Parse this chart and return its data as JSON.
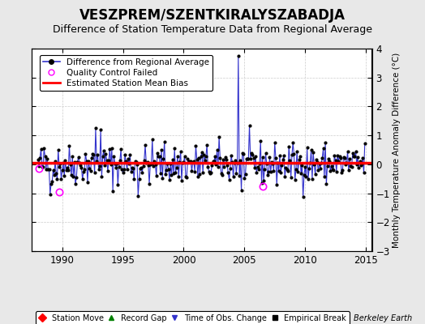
{
  "title": "VESZPREM/SZENTKIRALYSZABADJA",
  "subtitle": "Difference of Station Temperature Data from Regional Average",
  "ylabel_right": "Monthly Temperature Anomaly Difference (°C)",
  "xlim": [
    1987.5,
    2015.5
  ],
  "ylim": [
    -3,
    4
  ],
  "yticks": [
    -3,
    -2,
    -1,
    0,
    1,
    2,
    3,
    4
  ],
  "xticks": [
    1990,
    1995,
    2000,
    2005,
    2010,
    2015
  ],
  "bias_value": 0.05,
  "background_color": "#e8e8e8",
  "plot_bg_color": "#ffffff",
  "line_color": "#3333cc",
  "bias_color": "#ff0000",
  "title_fontsize": 12,
  "subtitle_fontsize": 9,
  "watermark": "Berkeley Earth",
  "seed": 42,
  "start_year": 1988.0,
  "end_year": 2014.917,
  "spike_year": 2004.5,
  "spike_value": 3.75,
  "qc_times": [
    1988.08,
    1989.75,
    2006.5
  ],
  "qc_values": [
    -0.15,
    -0.95,
    -0.75
  ],
  "grid_color": "#cccccc",
  "grid_style": "--"
}
